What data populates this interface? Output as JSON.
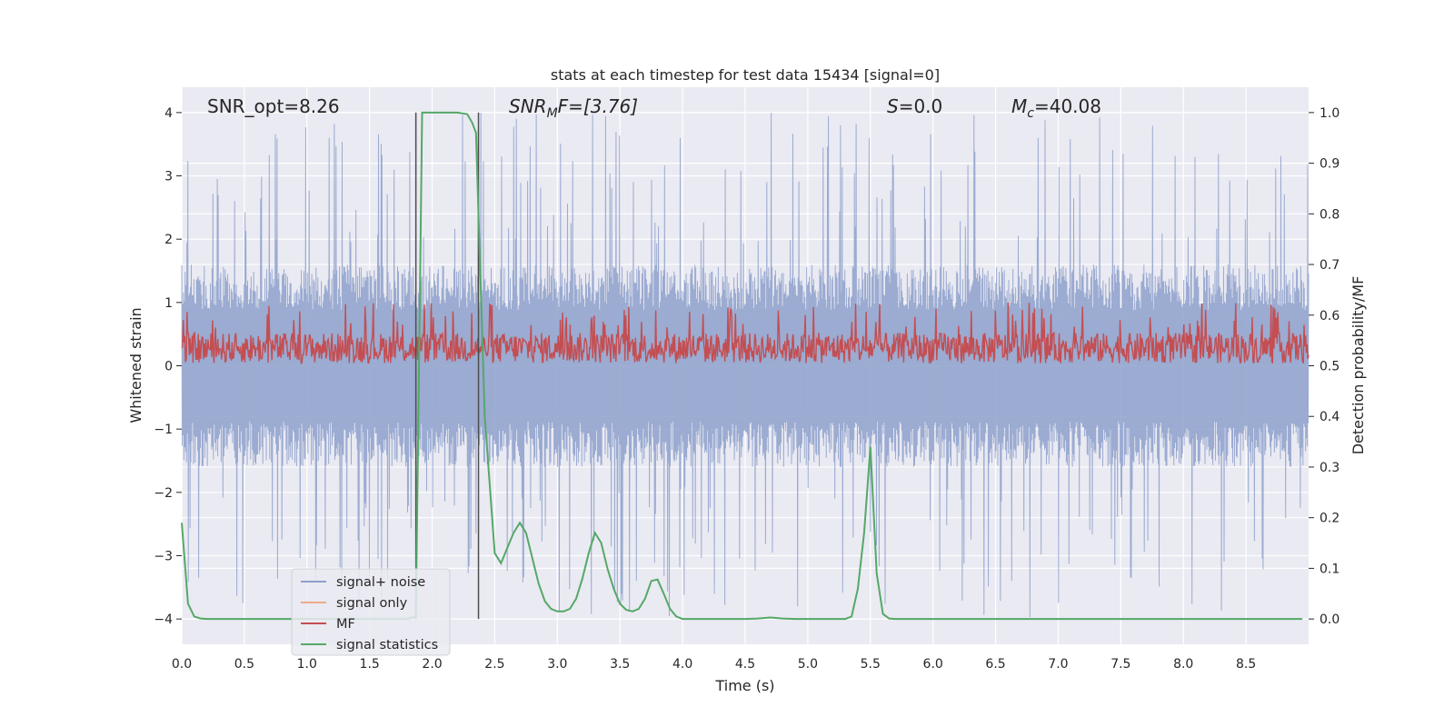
{
  "chart_data": {
    "type": "line",
    "title": "stats at each timestep for test data 15434 [signal=0]",
    "xlabel": "Time (s)",
    "ylabel_left": "Whitened strain",
    "ylabel_right": "Detection probability/MF",
    "xlim": [
      0.0,
      9.0
    ],
    "ylim_left": [
      -4.4,
      4.4
    ],
    "ylim_right": [
      -0.05,
      1.05
    ],
    "x_ticks": [
      0.0,
      0.5,
      1.0,
      1.5,
      2.0,
      2.5,
      3.0,
      3.5,
      4.0,
      4.5,
      5.0,
      5.5,
      6.0,
      6.5,
      7.0,
      7.5,
      8.0,
      8.5
    ],
    "x_tick_labels": [
      "0.0",
      "0.5",
      "1.0",
      "1.5",
      "2.0",
      "2.5",
      "3.0",
      "3.5",
      "4.0",
      "4.5",
      "5.0",
      "5.5",
      "6.0",
      "6.5",
      "7.0",
      "7.5",
      "8.0",
      "8.5"
    ],
    "y_left_ticks": [
      -4,
      -3,
      -2,
      -1,
      0,
      1,
      2,
      3,
      4
    ],
    "y_left_tick_labels": [
      "−4",
      "−3",
      "−2",
      "−1",
      "0",
      "1",
      "2",
      "3",
      "4"
    ],
    "y_right_ticks": [
      0.0,
      0.1,
      0.2,
      0.3,
      0.4,
      0.5,
      0.6,
      0.7,
      0.8,
      0.9,
      1.0
    ],
    "y_right_tick_labels": [
      "0.0",
      "0.1",
      "0.2",
      "0.3",
      "0.4",
      "0.5",
      "0.6",
      "0.7",
      "0.8",
      "0.9",
      "1.0"
    ],
    "grid": true,
    "annotations": {
      "snr_opt": "SNR_opt=8.26",
      "snr_mf_main": "SNR",
      "snr_mf_sub": "M",
      "snr_mf_rest": "F=[3.76]",
      "s_main": "S",
      "s_rest": "=0.0",
      "mc_main": "M",
      "mc_sub": "c",
      "mc_rest": "=40.08"
    },
    "vertical_lines": [
      1.87,
      2.37
    ],
    "vertical_line_range": [
      -4,
      4
    ],
    "legend": {
      "position": "lower-left",
      "entries": [
        {
          "label": "signal+ noise",
          "color": "#8da0cb"
        },
        {
          "label": "signal only",
          "color": "#f0a98a"
        },
        {
          "label": "MF",
          "color": "#c44e52"
        },
        {
          "label": "signal statistics",
          "color": "#55a868"
        }
      ]
    },
    "colors": {
      "noise": "#8da0cb",
      "signal_only": "#e8967a",
      "mf": "#c44e52",
      "stat": "#55a868",
      "vline": "#4d4d4d",
      "axes_bg": "#eaeaf2"
    },
    "series": [
      {
        "name": "signal statistics",
        "axis": "right",
        "x": [
          0.0,
          0.05,
          0.1,
          0.15,
          0.2,
          0.3,
          0.5,
          1.0,
          1.5,
          1.8,
          1.87,
          1.9,
          1.92,
          1.95,
          2.0,
          2.1,
          2.2,
          2.28,
          2.32,
          2.35,
          2.38,
          2.42,
          2.5,
          2.55,
          2.6,
          2.65,
          2.7,
          2.75,
          2.8,
          2.85,
          2.9,
          2.95,
          3.0,
          3.05,
          3.1,
          3.15,
          3.2,
          3.25,
          3.3,
          3.35,
          3.4,
          3.45,
          3.5,
          3.55,
          3.6,
          3.65,
          3.7,
          3.75,
          3.8,
          3.85,
          3.9,
          3.95,
          4.0,
          4.05,
          4.1,
          4.2,
          4.5,
          4.6,
          4.7,
          4.8,
          4.9,
          5.0,
          5.2,
          5.3,
          5.35,
          5.4,
          5.45,
          5.5,
          5.55,
          5.6,
          5.65,
          5.7,
          5.8,
          6.0,
          6.5,
          7.0,
          7.5,
          8.0,
          8.5,
          8.95
        ],
        "values": [
          0.19,
          0.03,
          0.005,
          0.001,
          0.0,
          0.0,
          0.0,
          0.0,
          0.0,
          0.0,
          0.005,
          0.6,
          1.0,
          1.0,
          1.0,
          1.0,
          1.0,
          0.997,
          0.98,
          0.96,
          0.72,
          0.4,
          0.13,
          0.11,
          0.14,
          0.17,
          0.19,
          0.17,
          0.12,
          0.07,
          0.035,
          0.02,
          0.015,
          0.015,
          0.02,
          0.04,
          0.08,
          0.13,
          0.17,
          0.15,
          0.1,
          0.06,
          0.03,
          0.018,
          0.015,
          0.02,
          0.04,
          0.075,
          0.078,
          0.05,
          0.02,
          0.005,
          0.0,
          0.0,
          0.0,
          0.0,
          0.0,
          0.001,
          0.003,
          0.001,
          0.0,
          0.0,
          0.0,
          0.0,
          0.005,
          0.06,
          0.17,
          0.34,
          0.09,
          0.01,
          0.001,
          0.0,
          0.0,
          0.0,
          0.0,
          0.0,
          0.0,
          0.0,
          0.0,
          0.0
        ]
      },
      {
        "name": "signal+ noise",
        "axis": "left",
        "note": "dense noise trace, procedurally generated to match envelope",
        "envelope_min": -4.0,
        "envelope_max": 4.0,
        "typical_amplitude": 1.6
      },
      {
        "name": "MF",
        "axis": "right",
        "note": "matched filter output, fluctuates about 0.53",
        "mean": 0.535,
        "min": 0.5,
        "max": 0.625
      }
    ]
  }
}
